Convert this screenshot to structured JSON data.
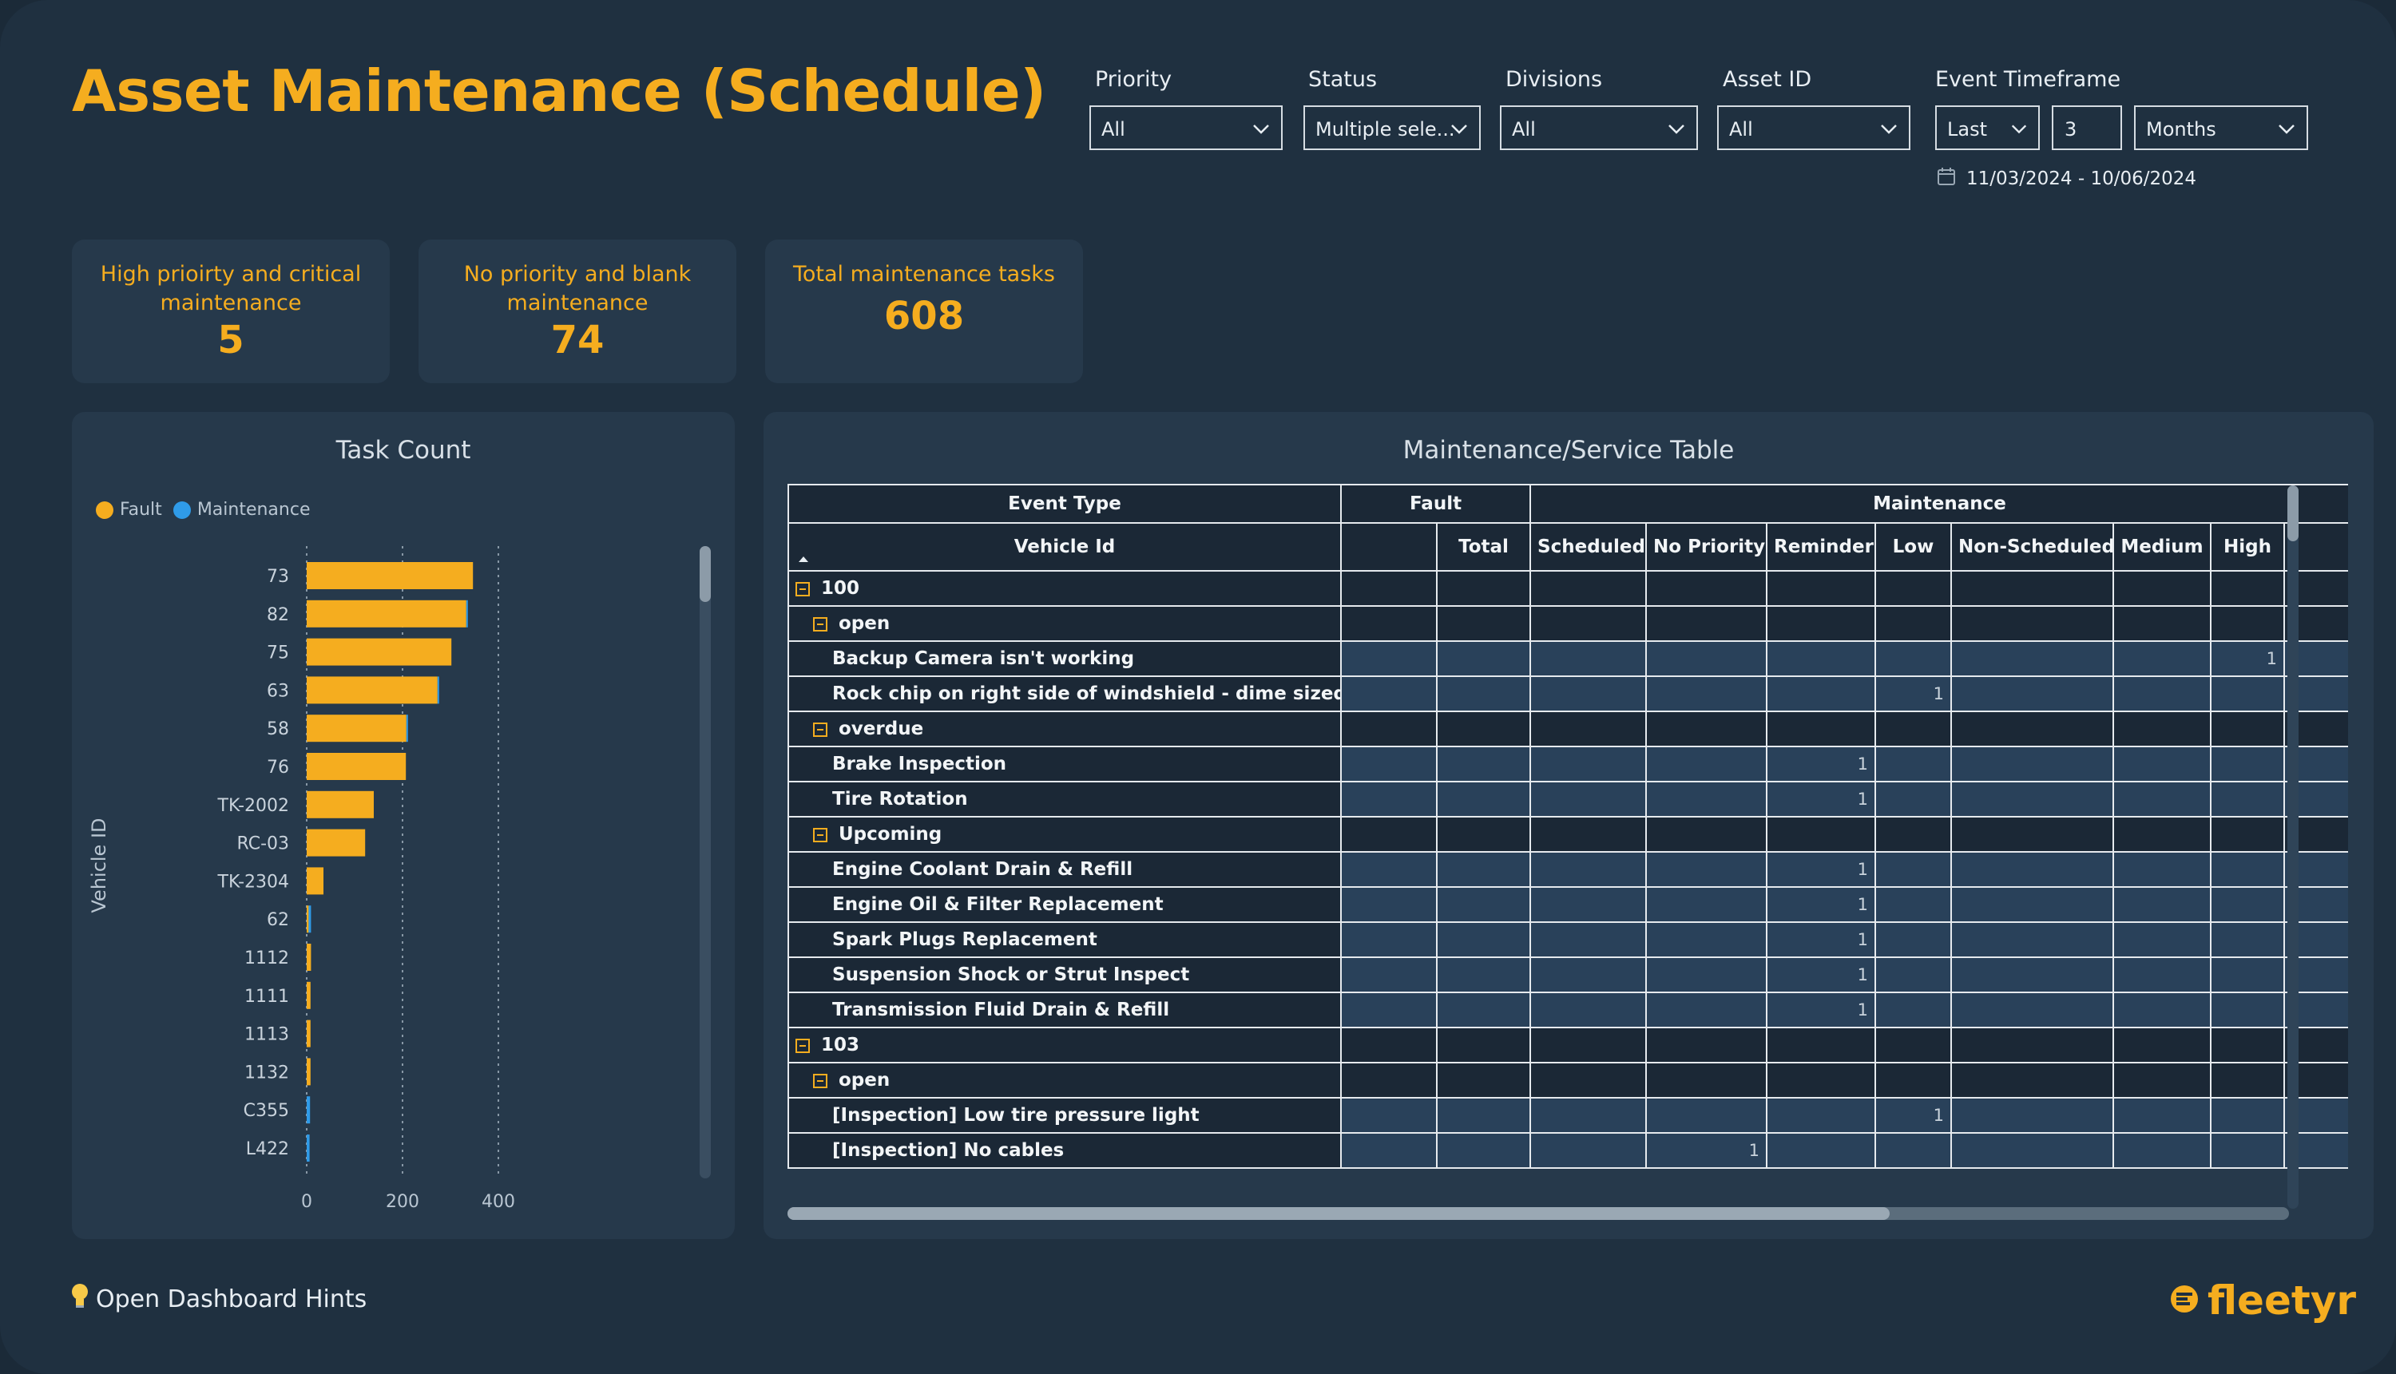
{
  "page_title": "Asset Maintenance (Schedule)",
  "filters": {
    "priority": {
      "label": "Priority",
      "value": "All"
    },
    "status": {
      "label": "Status",
      "value": "Multiple sele..."
    },
    "divisions": {
      "label": "Divisions",
      "value": "All"
    },
    "asset_id": {
      "label": "Asset ID",
      "value": "All"
    },
    "event_timeframe": {
      "label": "Event Timeframe",
      "mode": "Last",
      "amount": "3",
      "unit": "Months",
      "date_range": "11/03/2024 - 10/06/2024"
    }
  },
  "kpis": [
    {
      "label_line1": "High prioirty and critical",
      "label_line2": "maintenance",
      "value": "5"
    },
    {
      "label_line1": "No priority and blank",
      "label_line2": "maintenance",
      "value": "74"
    },
    {
      "label_line1": "Total maintenance tasks",
      "label_line2": "",
      "value": "608"
    }
  ],
  "task_chart": {
    "title": "Task Count",
    "legend": [
      {
        "name": "Fault",
        "color": "#f5ad1f"
      },
      {
        "name": "Maintenance",
        "color": "#2f9be8"
      }
    ]
  },
  "chart_data": {
    "type": "bar",
    "orientation": "horizontal",
    "stacked": true,
    "title": "Task Count",
    "ylabel": "Vehicle ID",
    "xlabel": "",
    "categories": [
      "73",
      "82",
      "75",
      "63",
      "58",
      "76",
      "TK-2002",
      "RC-03",
      "TK-2304",
      "62",
      "1112",
      "1111",
      "1113",
      "1132",
      "C355",
      "L422"
    ],
    "series": [
      {
        "name": "Fault",
        "color": "#f5ad1f",
        "values": [
          347,
          333,
          302,
          273,
          208,
          207,
          140,
          122,
          35,
          4,
          9,
          8,
          8,
          8,
          0,
          0
        ]
      },
      {
        "name": "Maintenance",
        "color": "#2f9be8",
        "values": [
          0,
          2,
          0,
          1,
          2,
          0,
          0,
          0,
          0,
          5,
          0,
          0,
          0,
          0,
          7,
          6
        ]
      }
    ],
    "xlim": [
      0,
      420
    ],
    "xticks": [
      0,
      200,
      400
    ],
    "grid": true,
    "legend_position": "top-left"
  },
  "table": {
    "title": "Maintenance/Service Table",
    "header_row1": {
      "event_type": "Event Type",
      "fault": "Fault",
      "maintenance": "Maintenance"
    },
    "header_row2": {
      "vehicle_id": "Vehicle Id",
      "columns": [
        "",
        "Total",
        "Scheduled",
        "No Priority",
        "Reminder",
        "Low",
        "Non-Scheduled",
        "Medium",
        "High"
      ]
    },
    "rows": [
      {
        "kind": "group",
        "level": 0,
        "label": "100",
        "values": [
          "",
          "",
          "",
          "",
          "",
          "",
          "",
          "",
          ""
        ]
      },
      {
        "kind": "group",
        "level": 1,
        "label": "open",
        "values": [
          "",
          "",
          "",
          "",
          "",
          "",
          "",
          "",
          ""
        ]
      },
      {
        "kind": "leaf",
        "level": 2,
        "label": "Backup Camera isn't working",
        "values": [
          "",
          "",
          "",
          "",
          "",
          "",
          "",
          "",
          "1"
        ]
      },
      {
        "kind": "leaf",
        "level": 2,
        "label": "Rock chip on right side of windshield - dime sized",
        "values": [
          "",
          "",
          "",
          "",
          "",
          "1",
          "",
          "",
          ""
        ]
      },
      {
        "kind": "group",
        "level": 1,
        "label": "overdue",
        "values": [
          "",
          "",
          "",
          "",
          "",
          "",
          "",
          "",
          ""
        ]
      },
      {
        "kind": "leaf",
        "level": 2,
        "label": "Brake Inspection",
        "values": [
          "",
          "",
          "",
          "",
          "1",
          "",
          "",
          "",
          ""
        ]
      },
      {
        "kind": "leaf",
        "level": 2,
        "label": "Tire Rotation",
        "values": [
          "",
          "",
          "",
          "",
          "1",
          "",
          "",
          "",
          ""
        ]
      },
      {
        "kind": "group",
        "level": 1,
        "label": "Upcoming",
        "values": [
          "",
          "",
          "",
          "",
          "",
          "",
          "",
          "",
          ""
        ]
      },
      {
        "kind": "leaf",
        "level": 2,
        "label": "Engine Coolant Drain & Refill",
        "values": [
          "",
          "",
          "",
          "",
          "1",
          "",
          "",
          "",
          ""
        ]
      },
      {
        "kind": "leaf",
        "level": 2,
        "label": "Engine Oil & Filter Replacement",
        "values": [
          "",
          "",
          "",
          "",
          "1",
          "",
          "",
          "",
          ""
        ]
      },
      {
        "kind": "leaf",
        "level": 2,
        "label": "Spark Plugs Replacement",
        "values": [
          "",
          "",
          "",
          "",
          "1",
          "",
          "",
          "",
          ""
        ]
      },
      {
        "kind": "leaf",
        "level": 2,
        "label": "Suspension Shock or Strut Inspect",
        "values": [
          "",
          "",
          "",
          "",
          "1",
          "",
          "",
          "",
          ""
        ]
      },
      {
        "kind": "leaf",
        "level": 2,
        "label": "Transmission Fluid Drain & Refill",
        "values": [
          "",
          "",
          "",
          "",
          "1",
          "",
          "",
          "",
          ""
        ]
      },
      {
        "kind": "group",
        "level": 0,
        "label": "103",
        "values": [
          "",
          "",
          "",
          "",
          "",
          "",
          "",
          "",
          ""
        ]
      },
      {
        "kind": "group",
        "level": 1,
        "label": "open",
        "values": [
          "",
          "",
          "",
          "",
          "",
          "",
          "",
          "",
          ""
        ]
      },
      {
        "kind": "leaf",
        "level": 2,
        "label": "[Inspection] Low tire pressure light",
        "values": [
          "",
          "",
          "",
          "",
          "",
          "1",
          "",
          "",
          ""
        ]
      },
      {
        "kind": "leaf",
        "level": 2,
        "label": "[Inspection] No cables",
        "values": [
          "",
          "",
          "",
          "1",
          "",
          "",
          "",
          "",
          ""
        ]
      }
    ]
  },
  "footer": {
    "hints_label": "Open Dashboard Hints",
    "brand": "fleetyr"
  },
  "colors": {
    "accent": "#f5ad1f",
    "maintenance_blue": "#2f9be8",
    "background": "#1f3040",
    "panel": "#26394b"
  }
}
